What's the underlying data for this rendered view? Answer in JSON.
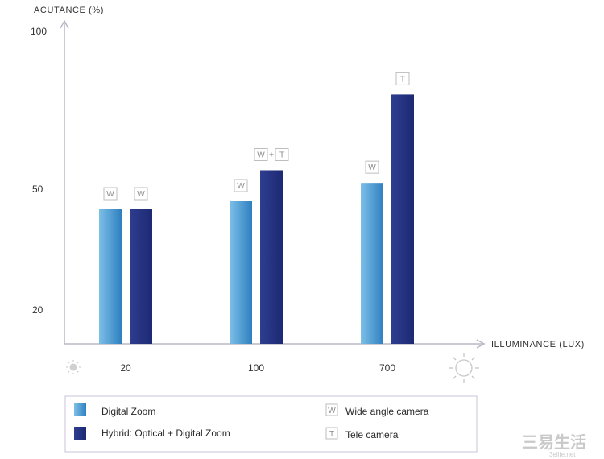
{
  "chart_data": {
    "type": "bar",
    "title": "",
    "ylabel": "ACUTANCE (%)",
    "xlabel": "ILLUMINANCE (LUX)",
    "y_ticks": [
      100,
      50,
      20
    ],
    "categories": [
      "20",
      "100",
      "700"
    ],
    "series": [
      {
        "name": "Digital Zoom",
        "values": [
          45,
          47,
          52
        ],
        "tags": [
          "W",
          "W",
          "W"
        ]
      },
      {
        "name": "Hybrid: Optical + Digital Zoom",
        "values": [
          45,
          56,
          80
        ],
        "tags": [
          "W",
          "W+T",
          "T"
        ]
      }
    ],
    "grid": false,
    "legend_position": "bottom"
  },
  "legend": {
    "series": [
      {
        "label": "Digital Zoom",
        "color_top": "#6fb5e2",
        "color_bottom": "#2f7fbf"
      },
      {
        "label": "Hybrid: Optical + Digital Zoom",
        "color_top": "#3a4ca0",
        "color_bottom": "#1f2a78"
      }
    ],
    "tags": [
      {
        "symbol": "W",
        "label": "Wide angle camera"
      },
      {
        "symbol": "T",
        "label": "Tele camera"
      }
    ]
  },
  "icons": {
    "low_light": "dim-sun-icon",
    "high_light": "bright-sun-icon"
  },
  "watermark": {
    "text": "三易生活",
    "sub": "3elife.net"
  },
  "colors": {
    "axis": "#b8b8c6",
    "tag_border": "#bdbdbd"
  }
}
